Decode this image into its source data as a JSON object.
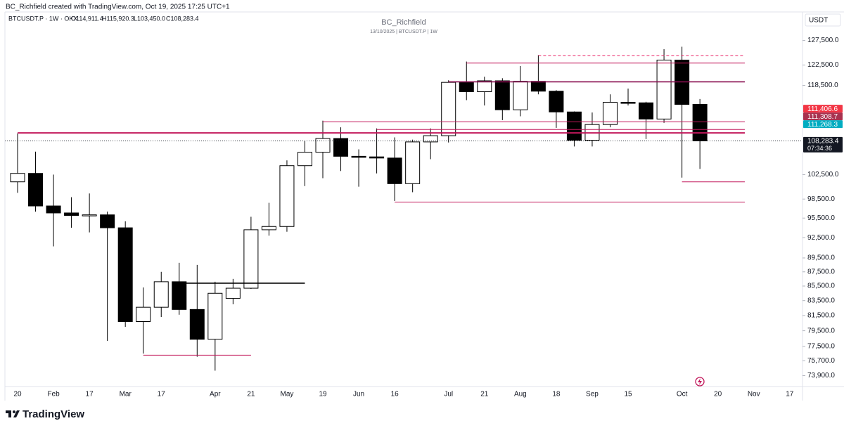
{
  "header": {
    "creator": "BC_Richfield created with TradingView.com, Oct 19, 2025 17:25 UTC+1",
    "symbol": "BTCUSDT.P · 1W · OKX",
    "ohlc": [
      "O114,911.4",
      "H115,920.3",
      "L103,450.0",
      "C108,283.4"
    ],
    "brand": "TradingView"
  },
  "chart_data": {
    "type": "candlestick",
    "title": "BC_Richfield",
    "subtitle": "13/10/2025 | BTCUSDT.P | 1W",
    "ylabel": "USDT",
    "log_scale": true,
    "grid": false,
    "categories": [
      "20",
      null,
      "Feb",
      null,
      "17",
      null,
      "Mar",
      null,
      "17",
      null,
      null,
      "Apr",
      null,
      "21",
      null,
      "May",
      null,
      "19",
      null,
      "Jun",
      null,
      "16",
      null,
      null,
      "Jul",
      null,
      "21",
      null,
      "Aug",
      null,
      "18",
      null,
      "Sep",
      null,
      "15",
      null,
      null,
      "Oct",
      null,
      "20",
      null,
      "Nov",
      null,
      "17"
    ],
    "open": [
      101300,
      102700,
      97400,
      96300,
      95900,
      96000,
      94000,
      80700,
      82600,
      86100,
      82300,
      78400,
      83800,
      85200,
      93700,
      94200,
      104000,
      106300,
      108700,
      105600,
      105500,
      105300,
      101000,
      108100,
      109200,
      119100,
      117300,
      119400,
      113900,
      119300,
      117400,
      113500,
      108400,
      111200,
      115300,
      115200,
      112200,
      123500,
      114911.4,
      null,
      null,
      null,
      null,
      null
    ],
    "high": [
      109600,
      106400,
      102500,
      98800,
      99400,
      96500,
      95000,
      85300,
      87500,
      88800,
      88500,
      86100,
      86500,
      95700,
      97900,
      104900,
      108300,
      111900,
      110700,
      106800,
      110500,
      108900,
      108500,
      110500,
      119500,
      123200,
      120200,
      119900,
      122300,
      124500,
      117600,
      113600,
      113400,
      116800,
      117900,
      115400,
      125700,
      126200,
      115920.3,
      null,
      null,
      null,
      null,
      null
    ],
    "low": [
      99500,
      96500,
      91200,
      94000,
      93300,
      78200,
      80000,
      76600,
      81300,
      81600,
      76200,
      74500,
      83000,
      85100,
      92800,
      93400,
      100600,
      101900,
      103100,
      100500,
      102700,
      98200,
      99600,
      105100,
      108000,
      115700,
      114700,
      112000,
      112700,
      116800,
      110600,
      107300,
      107300,
      110700,
      114700,
      108600,
      111500,
      102000,
      103450.0,
      null,
      null,
      null,
      null,
      null
    ],
    "close": [
      102700,
      97400,
      96300,
      95900,
      96000,
      94000,
      80700,
      82600,
      86100,
      82300,
      78400,
      84500,
      85200,
      93700,
      94200,
      104000,
      106300,
      108700,
      105600,
      105500,
      105300,
      101000,
      108100,
      109200,
      119100,
      117300,
      119400,
      113900,
      119300,
      117400,
      113500,
      108400,
      111200,
      115300,
      115200,
      112200,
      123500,
      114900,
      108283.4,
      null,
      null,
      null,
      null,
      null
    ],
    "ylim": [
      72600,
      133100
    ],
    "yticks": [
      {
        "value": 127500,
        "label": "127,500.0"
      },
      {
        "value": 122500,
        "label": "122,500.0"
      },
      {
        "value": 118500,
        "label": "118,500.0"
      },
      {
        "value": 102500,
        "label": "102,500.0"
      },
      {
        "value": 98500,
        "label": "98,500.0"
      },
      {
        "value": 95500,
        "label": "95,500.0"
      },
      {
        "value": 92500,
        "label": "92,500.0"
      },
      {
        "value": 89500,
        "label": "89,500.0"
      },
      {
        "value": 87500,
        "label": "87,500.0"
      },
      {
        "value": 85500,
        "label": "85,500.0"
      },
      {
        "value": 83500,
        "label": "83,500.0"
      },
      {
        "value": 81500,
        "label": "81,500.0"
      },
      {
        "value": 79500,
        "label": "79,500.0"
      },
      {
        "value": 77500,
        "label": "77,500.0"
      },
      {
        "value": 75700,
        "label": "75,700.0"
      },
      {
        "value": 73900,
        "label": "73,900.0"
      }
    ],
    "levels": [
      {
        "value": 109700,
        "color": "#c2185b",
        "style": "solid"
      },
      {
        "value": 119200,
        "color": "#880e4f",
        "style": "solid"
      },
      {
        "value": 122900,
        "color": "#c2185b",
        "style": "solid"
      },
      {
        "value": 124400,
        "color": "#e91e63",
        "style": "dashed"
      },
      {
        "value": 111700,
        "color": "#c2185b",
        "style": "solid"
      },
      {
        "value": 110300,
        "color": "#c2185b",
        "style": "solid"
      },
      {
        "value": 101300,
        "color": "#c2185b",
        "style": "solid"
      },
      {
        "value": 98000,
        "color": "#c2185b",
        "style": "solid"
      },
      {
        "value": 76400,
        "color": "#c2185b",
        "style": "solid"
      },
      {
        "value": 85900,
        "color": "#000000",
        "style": "solid"
      }
    ],
    "price_labels": [
      {
        "value": 111406.6,
        "label": "111,406.6",
        "color": "#f23645"
      },
      {
        "value": 111308.7,
        "label": "111,308.7",
        "color": "#a8324f"
      },
      {
        "value": 111268.3,
        "label": "111,268.3",
        "color": "#00acc1"
      },
      {
        "value": 108283.4,
        "label": "108,283.4",
        "color": "#131722",
        "countdown": "07:34:36"
      }
    ]
  }
}
